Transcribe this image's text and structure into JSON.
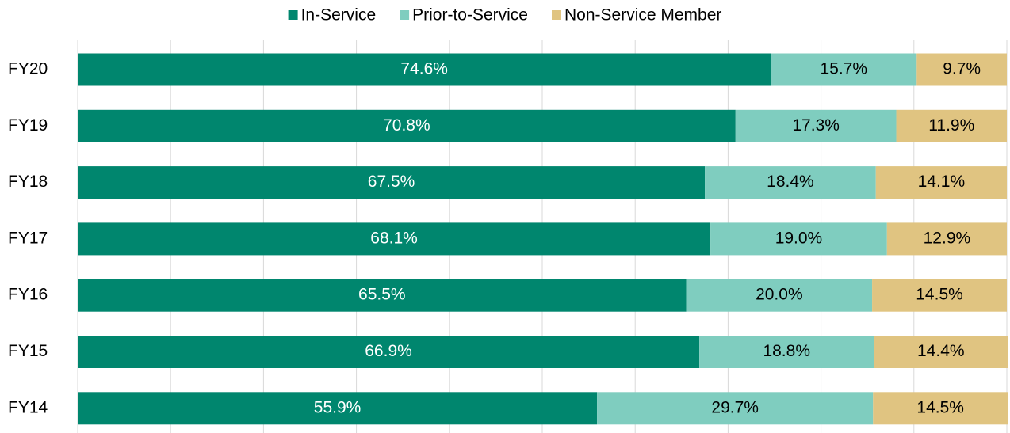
{
  "chart_data": {
    "type": "stacked-bar-horizontal",
    "categories": [
      "FY20",
      "FY19",
      "FY18",
      "FY17",
      "FY16",
      "FY15",
      "FY14"
    ],
    "series": [
      {
        "name": "In-Service",
        "color": "#00866e",
        "values": [
          74.6,
          70.8,
          67.5,
          68.1,
          65.5,
          66.9,
          55.9
        ],
        "value_labels": [
          "74.6%",
          "70.8%",
          "67.5%",
          "68.1%",
          "65.5%",
          "66.9%",
          "55.9%"
        ]
      },
      {
        "name": "Prior-to-Service",
        "color": "#7fcdbf",
        "values": [
          15.7,
          17.3,
          18.4,
          19.0,
          20.0,
          18.8,
          29.7
        ],
        "value_labels": [
          "15.7%",
          "17.3%",
          "18.4%",
          "19.0%",
          "20.0%",
          "18.8%",
          "29.7%"
        ]
      },
      {
        "name": "Non-Service Member",
        "color": "#e0c481",
        "values": [
          9.7,
          11.9,
          14.1,
          12.9,
          14.5,
          14.4,
          14.5
        ],
        "value_labels": [
          "9.7%",
          "11.9%",
          "14.1%",
          "12.9%",
          "14.5%",
          "14.4%",
          "14.5%"
        ]
      }
    ],
    "xlim": [
      0,
      100
    ],
    "xticks": [
      0,
      10,
      20,
      30,
      40,
      50,
      60,
      70,
      80,
      90,
      100
    ],
    "grid": true,
    "legend": "top"
  }
}
